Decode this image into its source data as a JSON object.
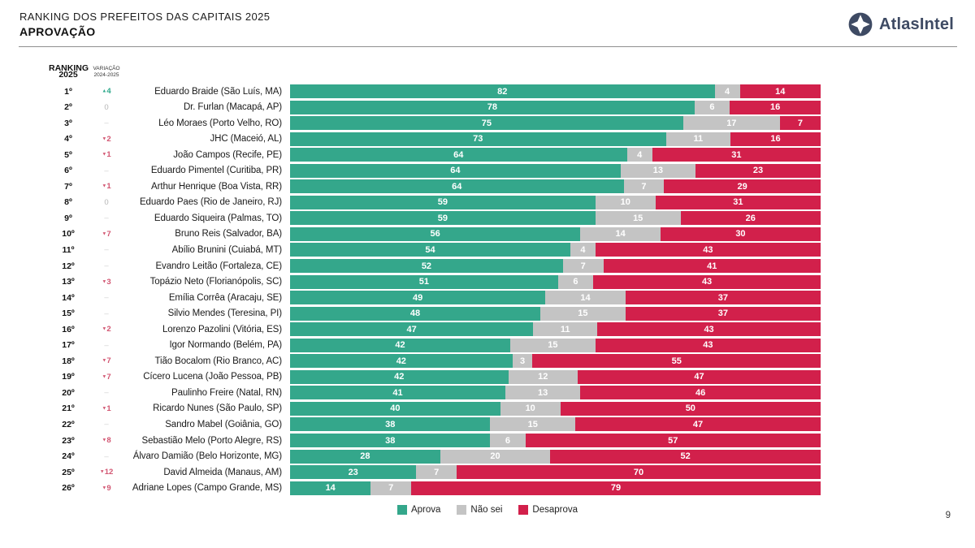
{
  "header": {
    "title": "RANKING DOS PREFEITOS DAS CAPITAIS 2025",
    "subtitle": "APROVAÇÃO",
    "logo_text": "AtlasIntel"
  },
  "columns": {
    "rank_line1": "RANKING",
    "rank_line2": "2025",
    "var_line1": "VARIAÇÃO",
    "var_line2": "2024-2025"
  },
  "legend": [
    {
      "label": "Aprova",
      "color": "#34A78B"
    },
    {
      "label": "Não sei",
      "color": "#C4C4C4"
    },
    {
      "label": "Desaprova",
      "color": "#D2204B"
    }
  ],
  "footer": {
    "page_number": "9"
  },
  "chart_data": {
    "type": "bar",
    "orientation": "horizontal",
    "stacked": true,
    "value_unit": "percent",
    "x_range": [
      0,
      100
    ],
    "series_names": [
      "Aprova",
      "Não sei",
      "Desaprova"
    ],
    "colors": {
      "aprova": "#34A78B",
      "nao_sei": "#C4C4C4",
      "desaprova": "#D2204B",
      "variation_up": "#2FA98C",
      "variation_down": "#D25672"
    },
    "rows": [
      {
        "rank": "1º",
        "variation": "4",
        "variation_dir": "up",
        "name": "Eduardo Braide (São Luís, MA)",
        "aprova": 82,
        "nao_sei": 4,
        "desaprova": 14
      },
      {
        "rank": "2º",
        "variation": "0",
        "variation_dir": "zero",
        "name": "Dr. Furlan (Macapá, AP)",
        "aprova": 78,
        "nao_sei": 6,
        "desaprova": 16
      },
      {
        "rank": "3º",
        "variation": "–",
        "variation_dir": "none",
        "name": "Léo Moraes (Porto Velho, RO)",
        "aprova": 75,
        "nao_sei": 17,
        "desaprova": 7
      },
      {
        "rank": "4º",
        "variation": "2",
        "variation_dir": "down",
        "name": "JHC (Maceió, AL)",
        "aprova": 73,
        "nao_sei": 11,
        "desaprova": 16
      },
      {
        "rank": "5º",
        "variation": "1",
        "variation_dir": "down",
        "name": "João Campos (Recife, PE)",
        "aprova": 64,
        "nao_sei": 4,
        "desaprova": 31
      },
      {
        "rank": "6º",
        "variation": "–",
        "variation_dir": "none",
        "name": "Eduardo Pimentel (Curitiba, PR)",
        "aprova": 64,
        "nao_sei": 13,
        "desaprova": 23
      },
      {
        "rank": "7º",
        "variation": "1",
        "variation_dir": "down",
        "name": "Arthur Henrique (Boa Vista, RR)",
        "aprova": 64,
        "nao_sei": 7,
        "desaprova": 29
      },
      {
        "rank": "8º",
        "variation": "0",
        "variation_dir": "zero",
        "name": "Eduardo Paes (Rio de Janeiro, RJ)",
        "aprova": 59,
        "nao_sei": 10,
        "desaprova": 31
      },
      {
        "rank": "9º",
        "variation": "–",
        "variation_dir": "none",
        "name": "Eduardo Siqueira (Palmas, TO)",
        "aprova": 59,
        "nao_sei": 15,
        "desaprova": 26
      },
      {
        "rank": "10º",
        "variation": "7",
        "variation_dir": "down",
        "name": "Bruno Reis (Salvador, BA)",
        "aprova": 56,
        "nao_sei": 14,
        "desaprova": 30
      },
      {
        "rank": "11º",
        "variation": "–",
        "variation_dir": "none",
        "name": "Abílio Brunini (Cuiabá, MT)",
        "aprova": 54,
        "nao_sei": 4,
        "desaprova": 43
      },
      {
        "rank": "12º",
        "variation": "–",
        "variation_dir": "none",
        "name": "Evandro Leitão (Fortaleza, CE)",
        "aprova": 52,
        "nao_sei": 7,
        "desaprova": 41
      },
      {
        "rank": "13º",
        "variation": "3",
        "variation_dir": "down",
        "name": "Topázio Neto (Florianópolis, SC)",
        "aprova": 51,
        "nao_sei": 6,
        "desaprova": 43
      },
      {
        "rank": "14º",
        "variation": "–",
        "variation_dir": "none",
        "name": "Emília Corrêa (Aracaju, SE)",
        "aprova": 49,
        "nao_sei": 14,
        "desaprova": 37
      },
      {
        "rank": "15º",
        "variation": "–",
        "variation_dir": "none",
        "name": "Silvio Mendes (Teresina, PI)",
        "aprova": 48,
        "nao_sei": 15,
        "desaprova": 37
      },
      {
        "rank": "16º",
        "variation": "2",
        "variation_dir": "down",
        "name": "Lorenzo Pazolini (Vitória, ES)",
        "aprova": 47,
        "nao_sei": 11,
        "desaprova": 43
      },
      {
        "rank": "17º",
        "variation": "–",
        "variation_dir": "none",
        "name": "Igor Normando (Belém, PA)",
        "aprova": 42,
        "nao_sei": 15,
        "desaprova": 43
      },
      {
        "rank": "18º",
        "variation": "7",
        "variation_dir": "down",
        "name": "Tião Bocalom (Rio Branco, AC)",
        "aprova": 42,
        "nao_sei": 3,
        "desaprova": 55
      },
      {
        "rank": "19º",
        "variation": "7",
        "variation_dir": "down",
        "name": "Cícero Lucena (João Pessoa, PB)",
        "aprova": 42,
        "nao_sei": 12,
        "desaprova": 47
      },
      {
        "rank": "20º",
        "variation": "–",
        "variation_dir": "none",
        "name": "Paulinho Freire (Natal, RN)",
        "aprova": 41,
        "nao_sei": 13,
        "desaprova": 46
      },
      {
        "rank": "21º",
        "variation": "1",
        "variation_dir": "down",
        "name": "Ricardo Nunes (São Paulo, SP)",
        "aprova": 40,
        "nao_sei": 10,
        "desaprova": 50
      },
      {
        "rank": "22º",
        "variation": "–",
        "variation_dir": "none",
        "name": "Sandro Mabel (Goiânia, GO)",
        "aprova": 38,
        "nao_sei": 15,
        "desaprova": 47
      },
      {
        "rank": "23º",
        "variation": "8",
        "variation_dir": "down",
        "name": "Sebastião Melo (Porto Alegre, RS)",
        "aprova": 38,
        "nao_sei": 6,
        "desaprova": 57
      },
      {
        "rank": "24º",
        "variation": "–",
        "variation_dir": "none",
        "name": "Álvaro Damião (Belo Horizonte, MG)",
        "aprova": 28,
        "nao_sei": 20,
        "desaprova": 52
      },
      {
        "rank": "25º",
        "variation": "12",
        "variation_dir": "down",
        "name": "David Almeida (Manaus, AM)",
        "aprova": 23,
        "nao_sei": 7,
        "desaprova": 70
      },
      {
        "rank": "26º",
        "variation": "9",
        "variation_dir": "down",
        "name": "Adriane Lopes (Campo Grande, MS)",
        "aprova": 14,
        "nao_sei": 7,
        "desaprova": 79
      }
    ]
  }
}
